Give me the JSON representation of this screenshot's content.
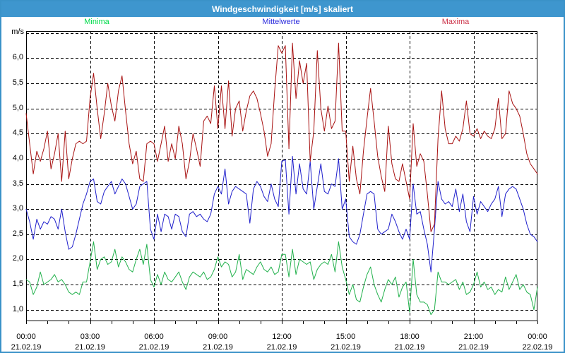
{
  "window": {
    "title": "Windgeschwindigkeit [m/s] skaliert"
  },
  "colors": {
    "window_border": "#3A92C8",
    "titlebar_bg": "#3E96CE",
    "titlebar_text": "#FFFFFF",
    "plot_border": "#000000",
    "grid": "#000000",
    "background": "#FFFFFF"
  },
  "chart_data": {
    "type": "line",
    "title": "Windgeschwindigkeit [m/s] skaliert",
    "ylabel": "m/s",
    "ylim": [
      0.77,
      6.54
    ],
    "grid": "dashed black, horizontal every 0.5 m/s (1.0 to 6.5), vertical every 3 h",
    "legend_position": "top",
    "x_range_hours": 24,
    "x_major_tick_hours": 3,
    "x_minor_tick_hours": 1,
    "sample_interval_minutes": 10,
    "y_ticks": [
      "6,0",
      "5,5",
      "5,0",
      "4,5",
      "4,0",
      "3,5",
      "3,0",
      "2,5",
      "2,0",
      "1,5",
      "1,0"
    ],
    "x_ticks": [
      {
        "time": "00:00",
        "date": "21.02.19"
      },
      {
        "time": "03:00",
        "date": "21.02.19"
      },
      {
        "time": "06:00",
        "date": "21.02.19"
      },
      {
        "time": "09:00",
        "date": "21.02.19"
      },
      {
        "time": "12:00",
        "date": "21.02.19"
      },
      {
        "time": "15:00",
        "date": "21.02.19"
      },
      {
        "time": "18:00",
        "date": "21.02.19"
      },
      {
        "time": "21:00",
        "date": "21.02.19"
      },
      {
        "time": "00:00",
        "date": "22.02.19"
      }
    ],
    "series": [
      {
        "name": "Minima",
        "line_color": "#22B14C",
        "label_color": "#00DB4A",
        "legend_center_x": 135,
        "values": [
          1.6,
          1.55,
          1.3,
          1.45,
          1.75,
          1.5,
          1.55,
          1.6,
          1.7,
          1.55,
          1.6,
          1.5,
          1.35,
          1.3,
          1.35,
          1.3,
          1.55,
          1.55,
          1.95,
          2.35,
          1.8,
          2.0,
          2.05,
          1.9,
          1.95,
          2.2,
          1.85,
          2.05,
          1.95,
          1.8,
          1.75,
          2.0,
          2.2,
          1.9,
          2.3,
          1.6,
          1.45,
          1.7,
          1.5,
          1.75,
          1.6,
          1.55,
          1.65,
          1.75,
          1.55,
          1.4,
          1.65,
          1.75,
          1.7,
          1.65,
          1.75,
          1.6,
          1.65,
          1.8,
          2.05,
          1.85,
          1.95,
          1.9,
          1.65,
          1.75,
          2.1,
          1.6,
          1.8,
          1.75,
          1.7,
          1.85,
          1.95,
          1.8,
          1.75,
          1.85,
          1.7,
          1.75,
          2.1,
          2.1,
          1.65,
          2.2,
          1.7,
          2.0,
          1.95,
          1.9,
          1.95,
          1.6,
          1.8,
          1.9,
          1.95,
          1.9,
          2.1,
          1.75,
          2.35,
          1.85,
          1.6,
          1.3,
          1.5,
          1.2,
          1.15,
          1.45,
          1.7,
          1.85,
          1.5,
          1.3,
          1.15,
          1.4,
          1.6,
          1.5,
          1.65,
          1.25,
          1.45,
          1.55,
          0.95,
          2.0,
          1.3,
          1.15,
          1.15,
          1.1,
          0.9,
          1.0,
          1.75,
          1.55,
          1.55,
          1.5,
          1.55,
          1.6,
          1.4,
          1.55,
          1.3,
          1.35,
          1.5,
          1.75,
          1.45,
          1.55,
          1.4,
          1.45,
          1.3,
          1.4,
          1.35,
          1.65,
          1.4,
          1.55,
          1.7,
          1.4,
          1.5,
          1.35,
          1.3,
          1.0,
          1.45
        ]
      },
      {
        "name": "Mittelwerte",
        "line_color": "#2020CC",
        "label_color": "#2B2BDD",
        "legend_center_x": 396,
        "values": [
          3.0,
          2.75,
          2.4,
          2.8,
          2.6,
          2.75,
          2.7,
          2.85,
          2.8,
          2.6,
          3.0,
          2.55,
          2.2,
          2.25,
          2.5,
          2.8,
          3.1,
          3.3,
          3.55,
          3.6,
          3.15,
          3.1,
          3.35,
          3.45,
          3.55,
          3.3,
          3.45,
          3.6,
          3.5,
          3.25,
          3.0,
          3.1,
          3.45,
          3.5,
          3.55,
          2.6,
          2.4,
          2.9,
          2.55,
          2.9,
          2.85,
          2.6,
          2.9,
          2.85,
          2.55,
          2.45,
          2.9,
          2.95,
          2.85,
          2.9,
          2.8,
          2.75,
          2.9,
          3.3,
          3.45,
          3.3,
          3.8,
          3.1,
          3.35,
          3.45,
          3.4,
          3.35,
          3.3,
          2.72,
          3.4,
          3.55,
          3.45,
          3.25,
          3.15,
          3.5,
          3.2,
          3.05,
          3.95,
          3.98,
          2.9,
          4.05,
          3.3,
          3.9,
          3.4,
          3.3,
          3.95,
          3.0,
          3.45,
          3.9,
          3.35,
          3.3,
          3.5,
          3.45,
          4.0,
          3.0,
          3.2,
          2.45,
          2.35,
          2.3,
          2.5,
          2.9,
          3.3,
          3.35,
          3.3,
          2.6,
          2.5,
          2.55,
          2.6,
          2.9,
          2.75,
          2.55,
          2.4,
          2.6,
          2.4,
          3.5,
          2.9,
          2.95,
          2.6,
          2.3,
          1.75,
          2.6,
          3.55,
          3.2,
          3.1,
          3.15,
          3.05,
          3.4,
          2.95,
          3.3,
          2.75,
          2.55,
          3.25,
          2.9,
          3.15,
          3.05,
          2.95,
          3.1,
          3.2,
          3.45,
          2.85,
          3.3,
          3.4,
          3.45,
          3.4,
          3.2,
          3.0,
          2.7,
          2.5,
          2.45,
          2.35
        ]
      },
      {
        "name": "Maxima",
        "line_color": "#A81212",
        "label_color": "#CC3349",
        "legend_center_x": 643,
        "values": [
          4.9,
          4.3,
          3.7,
          4.15,
          3.95,
          4.2,
          4.55,
          3.8,
          4.1,
          4.5,
          3.55,
          4.55,
          3.6,
          4.0,
          4.3,
          4.35,
          4.3,
          4.35,
          5.2,
          5.7,
          5.0,
          4.4,
          4.9,
          5.5,
          5.05,
          4.75,
          5.35,
          5.65,
          4.95,
          4.3,
          3.9,
          4.15,
          3.6,
          3.55,
          4.3,
          4.35,
          4.3,
          3.95,
          4.3,
          4.65,
          3.95,
          4.3,
          4.0,
          4.65,
          4.3,
          3.6,
          3.95,
          4.5,
          4.2,
          3.85,
          4.75,
          4.85,
          4.7,
          5.45,
          4.6,
          5.45,
          4.6,
          5.55,
          4.45,
          5.0,
          5.15,
          4.55,
          4.95,
          5.25,
          5.35,
          5.2,
          4.9,
          4.55,
          4.05,
          4.3,
          5.35,
          6.25,
          6.1,
          6.25,
          4.2,
          6.3,
          5.2,
          5.95,
          5.5,
          5.9,
          3.95,
          4.55,
          6.15,
          5.0,
          4.55,
          5.05,
          4.6,
          4.75,
          6.3,
          4.55,
          4.55,
          3.55,
          4.25,
          3.6,
          3.3,
          4.15,
          4.8,
          5.4,
          4.75,
          4.05,
          3.65,
          3.35,
          4.65,
          3.9,
          3.6,
          3.55,
          3.9,
          3.55,
          3.2,
          4.7,
          3.85,
          4.1,
          3.95,
          3.3,
          2.55,
          2.7,
          4.4,
          5.35,
          4.6,
          4.3,
          4.3,
          4.45,
          4.35,
          4.6,
          5.15,
          4.5,
          4.45,
          4.6,
          4.4,
          4.55,
          4.45,
          4.4,
          4.6,
          5.2,
          4.4,
          4.5,
          5.35,
          5.1,
          5.0,
          4.85,
          4.5,
          4.1,
          3.9,
          3.8,
          3.7
        ]
      }
    ]
  }
}
